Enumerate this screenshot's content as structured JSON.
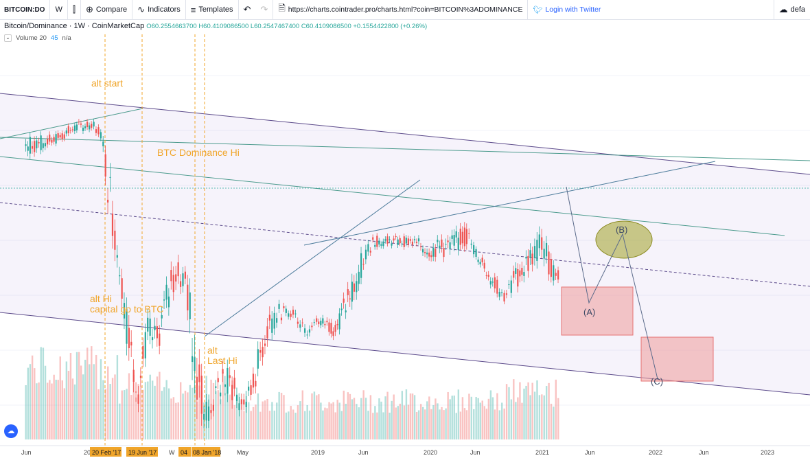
{
  "toolbar": {
    "symbol": "BITCOIN:DO",
    "interval": "W",
    "compare": "Compare",
    "indicators": "Indicators",
    "templates": "Templates",
    "url": "https://charts.cointrader.pro/charts.html?coin=BITCOIN%3ADOMINANCE",
    "login": "Login with Twitter",
    "layout": "defa"
  },
  "legend": {
    "title": "Bitcoin/Dominance · 1W · CoinMarketCap",
    "ohlc": "O60.2554663700  H60.4109086500  L60.2547467400  C60.4109086500  +0.1554422800 (+0.26%)",
    "volume_label": "Volume 20",
    "volume_value": "45",
    "volume_extra": "n/a"
  },
  "annotations": {
    "alt_start": "alt start",
    "btc_dom_hi": "BTC Dominance Hi",
    "alt_hi_1": "alt Hi",
    "alt_hi_2": "capital go to BTC",
    "alt_last_1": "alt",
    "alt_last_2": "Last Hi",
    "wave_a": "(A)",
    "wave_b": "(B)",
    "wave_c": "(C)"
  },
  "x_axis": {
    "ticks": [
      "Jun",
      "20",
      "W",
      "May",
      "2019",
      "Jun",
      "2020",
      "Jun",
      "2021",
      "Jun",
      "2022",
      "Jun",
      "2023"
    ],
    "highlighted": [
      "20 Feb '17",
      "19 Jun '17",
      "04",
      "08 Jan '18"
    ]
  },
  "colors": {
    "up": "#26a69a",
    "down": "#ef5350",
    "annotation": "#f0a52a",
    "channel": "#5b4a8a",
    "box": "#ef9a9a",
    "ellipse": "#a8a83a"
  },
  "chart_data": {
    "type": "candlestick",
    "title": "Bitcoin/Dominance · 1W · CoinMarketCap",
    "last_close": 60.41090865,
    "series": [
      {
        "name": "Bitcoin/Dominance",
        "points": [
          [
            "2016-06",
            82,
            86
          ],
          [
            "2016-09",
            84,
            86
          ],
          [
            "2016-11",
            86,
            88
          ],
          [
            "2017-01",
            87,
            89
          ],
          [
            "2017-02",
            85,
            87
          ],
          [
            "2017-03",
            70,
            80
          ],
          [
            "2017-04",
            60,
            66
          ],
          [
            "2017-05",
            45,
            54
          ],
          [
            "2017-06",
            38,
            44
          ],
          [
            "2017-07",
            48,
            54
          ],
          [
            "2017-08",
            46,
            52
          ],
          [
            "2017-09",
            54,
            60
          ],
          [
            "2017-10",
            58,
            64
          ],
          [
            "2017-11",
            58,
            62
          ],
          [
            "2017-12",
            40,
            56
          ],
          [
            "2018-01",
            34,
            40
          ],
          [
            "2018-02",
            36,
            40
          ],
          [
            "2018-03",
            40,
            46
          ],
          [
            "2018-04",
            38,
            44
          ],
          [
            "2018-05",
            36,
            40
          ],
          [
            "2018-06",
            38,
            42
          ],
          [
            "2018-07",
            44,
            50
          ],
          [
            "2018-08",
            50,
            56
          ],
          [
            "2018-09",
            53,
            56
          ],
          [
            "2018-10",
            53,
            55
          ],
          [
            "2018-11",
            52,
            55
          ],
          [
            "2018-12",
            50,
            53
          ],
          [
            "2019-01",
            52,
            54
          ],
          [
            "2019-03",
            50,
            53
          ],
          [
            "2019-05",
            56,
            62
          ],
          [
            "2019-06",
            62,
            66
          ],
          [
            "2019-07",
            66,
            68
          ],
          [
            "2019-09",
            66,
            68
          ],
          [
            "2019-11",
            66,
            68
          ],
          [
            "2020-01",
            64,
            67
          ],
          [
            "2020-03",
            64,
            68
          ],
          [
            "2020-05",
            66,
            70
          ],
          [
            "2020-06",
            64,
            66
          ],
          [
            "2020-08",
            58,
            61
          ],
          [
            "2020-09",
            56,
            58
          ],
          [
            "2020-10",
            58,
            62
          ],
          [
            "2020-12",
            62,
            67
          ],
          [
            "2021-01",
            64,
            70
          ],
          [
            "2021-02",
            60,
            64
          ],
          [
            "2021-03",
            60,
            62
          ]
        ]
      }
    ],
    "volume_label": "Volume 20"
  }
}
